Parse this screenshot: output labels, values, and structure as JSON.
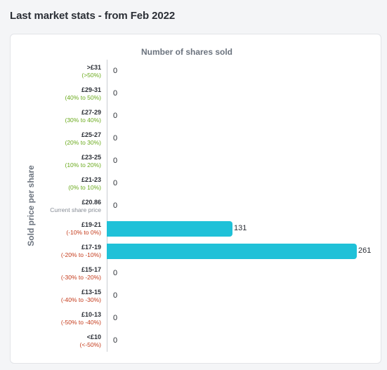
{
  "page": {
    "title": "Last market stats - from Feb 2022"
  },
  "colors": {
    "bar": "#1fc1d8",
    "positive": "#6aaa1c",
    "negative": "#c43a1a",
    "neutral": "#858b94"
  },
  "chart_data": {
    "type": "bar",
    "orientation": "horizontal",
    "title": "Number of shares sold",
    "xlabel": "Number of shares sold",
    "ylabel": "Sold price per share",
    "xlim": [
      0,
      261
    ],
    "grid": false,
    "categories": [
      {
        "price": ">£31",
        "range": "(>50%)",
        "tone": "positive"
      },
      {
        "price": "£29-31",
        "range": "(40% to 50%)",
        "tone": "positive"
      },
      {
        "price": "£27-29",
        "range": "(30% to 40%)",
        "tone": "positive"
      },
      {
        "price": "£25-27",
        "range": "(20% to 30%)",
        "tone": "positive"
      },
      {
        "price": "£23-25",
        "range": "(10% to 20%)",
        "tone": "positive"
      },
      {
        "price": "£21-23",
        "range": "(0% to 10%)",
        "tone": "positive"
      },
      {
        "price": "£20.86",
        "range": "Current share price",
        "tone": "neutral"
      },
      {
        "price": "£19-21",
        "range": "(-10% to 0%)",
        "tone": "negative"
      },
      {
        "price": "£17-19",
        "range": "(-20% to -10%)",
        "tone": "negative"
      },
      {
        "price": "£15-17",
        "range": "(-30% to -20%)",
        "tone": "negative"
      },
      {
        "price": "£13-15",
        "range": "(-40% to -30%)",
        "tone": "negative"
      },
      {
        "price": "£10-13",
        "range": "(-50% to -40%)",
        "tone": "negative"
      },
      {
        "price": "<£10",
        "range": "(<-50%)",
        "tone": "negative"
      }
    ],
    "values": [
      0,
      0,
      0,
      0,
      0,
      0,
      0,
      131,
      261,
      0,
      0,
      0,
      0
    ]
  }
}
